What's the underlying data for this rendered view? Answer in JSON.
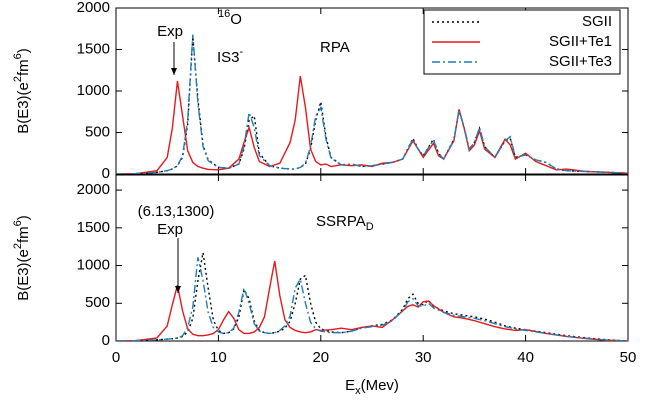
{
  "chart_data": [
    {
      "type": "line",
      "ylabel": [
        {
          "text": "B(E3)(e"
        },
        {
          "text": "2",
          "sup": true
        },
        {
          "text": "fm"
        },
        {
          "text": "6",
          "sup": true
        },
        {
          "text": ")"
        }
      ],
      "xlim": [
        0,
        50
      ],
      "xticks": [
        0,
        10,
        20,
        30,
        40,
        50
      ],
      "xtick_labels": false,
      "ylim": [
        0,
        2000
      ],
      "yticks": [
        0,
        500,
        1000,
        1500,
        2000
      ],
      "legend": "top-right",
      "annotations": [
        {
          "parts": [
            {
              "text": "Exp"
            }
          ]
        },
        {
          "parts": [
            {
              "text": "16",
              "sup": true
            },
            {
              "text": "O"
            }
          ]
        },
        {
          "parts": [
            {
              "text": "IS3"
            },
            {
              "text": "-",
              "sup": true
            }
          ]
        },
        {
          "parts": [
            {
              "text": "RPA"
            }
          ]
        }
      ],
      "x": [
        0,
        2,
        4,
        5,
        5.5,
        6,
        6.5,
        7,
        7.5,
        8,
        8.5,
        9,
        10,
        11,
        12,
        12.5,
        13,
        13.5,
        14,
        15,
        16,
        17,
        17.5,
        18,
        18.5,
        19,
        19.5,
        20,
        20.5,
        21,
        22,
        23,
        24,
        25,
        26,
        27,
        28,
        29,
        29.5,
        30,
        31,
        31.5,
        32,
        33,
        33.5,
        34,
        34.5,
        35,
        35.5,
        36,
        37,
        38,
        38.5,
        39,
        40,
        41,
        42,
        43,
        44,
        46,
        48,
        50
      ],
      "series": [
        {
          "name": "SGII",
          "color": "#000000",
          "dash": "dotted",
          "values": [
            0,
            5,
            20,
            40,
            60,
            100,
            200,
            600,
            1650,
            900,
            350,
            170,
            80,
            70,
            120,
            300,
            650,
            700,
            250,
            100,
            70,
            60,
            60,
            80,
            120,
            300,
            650,
            870,
            450,
            200,
            110,
            120,
            90,
            100,
            120,
            140,
            180,
            430,
            300,
            220,
            420,
            250,
            180,
            420,
            760,
            560,
            300,
            380,
            550,
            330,
            200,
            400,
            430,
            200,
            230,
            170,
            140,
            60,
            40,
            30,
            20,
            10
          ]
        },
        {
          "name": "SGII+Te1",
          "color": "#e41a1c",
          "dash": "solid",
          "values": [
            0,
            5,
            40,
            200,
            550,
            1120,
            700,
            280,
            140,
            90,
            70,
            55,
            50,
            70,
            180,
            380,
            560,
            320,
            150,
            90,
            130,
            380,
            650,
            1180,
            800,
            300,
            150,
            110,
            120,
            90,
            110,
            100,
            110,
            90,
            130,
            140,
            180,
            400,
            300,
            200,
            370,
            220,
            180,
            400,
            780,
            550,
            280,
            350,
            520,
            300,
            200,
            420,
            350,
            180,
            250,
            150,
            100,
            50,
            60,
            30,
            20,
            10
          ]
        },
        {
          "name": "SGII+Te3",
          "color": "#1f7fb8",
          "dash": "dashdot",
          "values": [
            0,
            5,
            20,
            40,
            60,
            100,
            220,
            650,
            1680,
            850,
            330,
            160,
            80,
            70,
            120,
            330,
            740,
            560,
            220,
            100,
            70,
            60,
            60,
            80,
            130,
            330,
            700,
            800,
            420,
            190,
            110,
            120,
            90,
            100,
            120,
            140,
            180,
            420,
            300,
            220,
            410,
            250,
            180,
            410,
            770,
            560,
            300,
            380,
            560,
            330,
            200,
            400,
            450,
            200,
            230,
            170,
            140,
            60,
            40,
            30,
            20,
            10
          ]
        }
      ]
    },
    {
      "type": "line",
      "ylabel": [
        {
          "text": "B(E3)(e"
        },
        {
          "text": "2",
          "sup": true
        },
        {
          "text": "fm"
        },
        {
          "text": "6",
          "sup": true
        },
        {
          "text": ")"
        }
      ],
      "xlabel": [
        {
          "text": "E"
        },
        {
          "text": "x",
          "sub": true
        },
        {
          "text": "(Mev)"
        }
      ],
      "xlim": [
        0,
        50
      ],
      "xticks": [
        0,
        10,
        20,
        30,
        40,
        50
      ],
      "xtick_labels": true,
      "ylim": [
        0,
        2200
      ],
      "yticks": [
        0,
        500,
        1000,
        1500,
        2000
      ],
      "annotations": [
        {
          "parts": [
            {
              "text": "(6.13,1300)"
            }
          ]
        },
        {
          "parts": [
            {
              "text": "Exp"
            }
          ]
        },
        {
          "parts": [
            {
              "text": "SSRPA"
            },
            {
              "text": "D",
              "sub": true
            }
          ]
        }
      ],
      "x": [
        0,
        2,
        4,
        5,
        5.5,
        6,
        6.5,
        7,
        7.5,
        8,
        8.5,
        9,
        9.5,
        10,
        10.5,
        11,
        11.5,
        12,
        12.5,
        13,
        13.5,
        14,
        14.5,
        15,
        15.5,
        16,
        16.5,
        17,
        17.5,
        18,
        18.5,
        19,
        19.5,
        20,
        21,
        22,
        23,
        24,
        25,
        26,
        27,
        28,
        28.5,
        29,
        29.5,
        30,
        30.5,
        31,
        32,
        33,
        34,
        35,
        36,
        37,
        38,
        39,
        40,
        42,
        44,
        46,
        48,
        50
      ],
      "series": [
        {
          "color": "#000000",
          "dash": "dotted",
          "values": [
            0,
            5,
            15,
            25,
            30,
            40,
            60,
            120,
            300,
            800,
            1170,
            700,
            280,
            140,
            100,
            110,
            160,
            320,
            680,
            560,
            260,
            140,
            110,
            100,
            110,
            130,
            170,
            260,
            500,
            820,
            870,
            500,
            250,
            160,
            120,
            110,
            130,
            180,
            200,
            220,
            280,
            420,
            560,
            620,
            500,
            480,
            540,
            460,
            400,
            360,
            340,
            320,
            290,
            250,
            200,
            170,
            150,
            110,
            70,
            40,
            15,
            0
          ]
        },
        {
          "color": "#e41a1c",
          "dash": "solid",
          "values": [
            0,
            5,
            40,
            200,
            480,
            740,
            400,
            160,
            90,
            70,
            70,
            80,
            100,
            150,
            280,
            390,
            300,
            150,
            100,
            100,
            120,
            180,
            320,
            700,
            1060,
            600,
            280,
            180,
            140,
            120,
            110,
            120,
            150,
            140,
            150,
            170,
            150,
            180,
            200,
            180,
            280,
            400,
            460,
            480,
            450,
            520,
            530,
            470,
            380,
            320,
            300,
            270,
            230,
            190,
            160,
            140,
            150,
            100,
            60,
            30,
            10,
            0
          ]
        },
        {
          "color": "#1f7fb8",
          "dash": "dashdot",
          "values": [
            0,
            5,
            15,
            25,
            30,
            40,
            70,
            180,
            450,
            1110,
            800,
            380,
            180,
            120,
            100,
            110,
            170,
            380,
            700,
            500,
            230,
            130,
            110,
            100,
            110,
            140,
            200,
            330,
            700,
            820,
            500,
            250,
            160,
            130,
            110,
            110,
            130,
            170,
            190,
            210,
            270,
            400,
            520,
            560,
            470,
            460,
            500,
            440,
            380,
            340,
            320,
            300,
            270,
            230,
            190,
            160,
            140,
            100,
            60,
            35,
            12,
            0
          ]
        }
      ]
    }
  ]
}
